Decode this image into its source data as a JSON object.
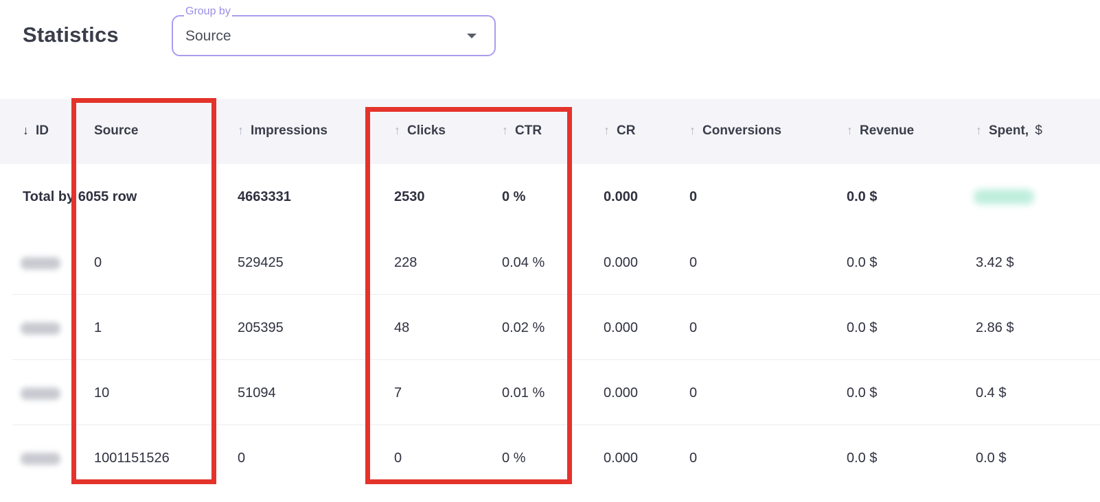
{
  "page": {
    "title": "Statistics"
  },
  "group_by": {
    "label": "Group by",
    "value": "Source",
    "icon": "caret-down-icon"
  },
  "table": {
    "columns": [
      {
        "key": "id",
        "label": "ID",
        "sort": "desc"
      },
      {
        "key": "source",
        "label": "Source",
        "sort": null
      },
      {
        "key": "impressions",
        "label": "Impressions",
        "sort": "asc"
      },
      {
        "key": "clicks",
        "label": "Clicks",
        "sort": "asc"
      },
      {
        "key": "ctr",
        "label": "CTR",
        "sort": "asc"
      },
      {
        "key": "cr",
        "label": "CR",
        "sort": "asc"
      },
      {
        "key": "conversions",
        "label": "Conversions",
        "sort": "asc"
      },
      {
        "key": "revenue",
        "label": "Revenue",
        "sort": "asc"
      },
      {
        "key": "spent",
        "label": "Spent,",
        "unit": "$",
        "sort": "asc"
      }
    ],
    "sort_icons": {
      "asc": "↑",
      "desc": "↓"
    },
    "total": {
      "label": "Total by 6055 row",
      "impressions": "4663331",
      "clicks": "2530",
      "ctr": "0 %",
      "cr": "0.000",
      "conversions": "0",
      "revenue": "0.0 $"
    },
    "rows": [
      {
        "source": "0",
        "impressions": "529425",
        "clicks": "228",
        "ctr": "0.04",
        "cr": "0.000",
        "conversions": "0",
        "revenue": "0.0",
        "spent": "3.42"
      },
      {
        "source": "1",
        "impressions": "205395",
        "clicks": "48",
        "ctr": "0.02",
        "cr": "0.000",
        "conversions": "0",
        "revenue": "0.0",
        "spent": "2.86"
      },
      {
        "source": "10",
        "impressions": "51094",
        "clicks": "7",
        "ctr": "0.01",
        "cr": "0.000",
        "conversions": "0",
        "revenue": "0.0",
        "spent": "0.4"
      },
      {
        "source": "1001151526",
        "impressions": "0",
        "clicks": "0",
        "ctr": "0",
        "cr": "0.000",
        "conversions": "0",
        "revenue": "0.0",
        "spent": "0.0"
      }
    ],
    "units": {
      "percent": "%",
      "currency": "$"
    }
  },
  "colors": {
    "highlight": "#e4332b",
    "total_text": "#8ce5c4",
    "select_border": "#a99cf0"
  }
}
